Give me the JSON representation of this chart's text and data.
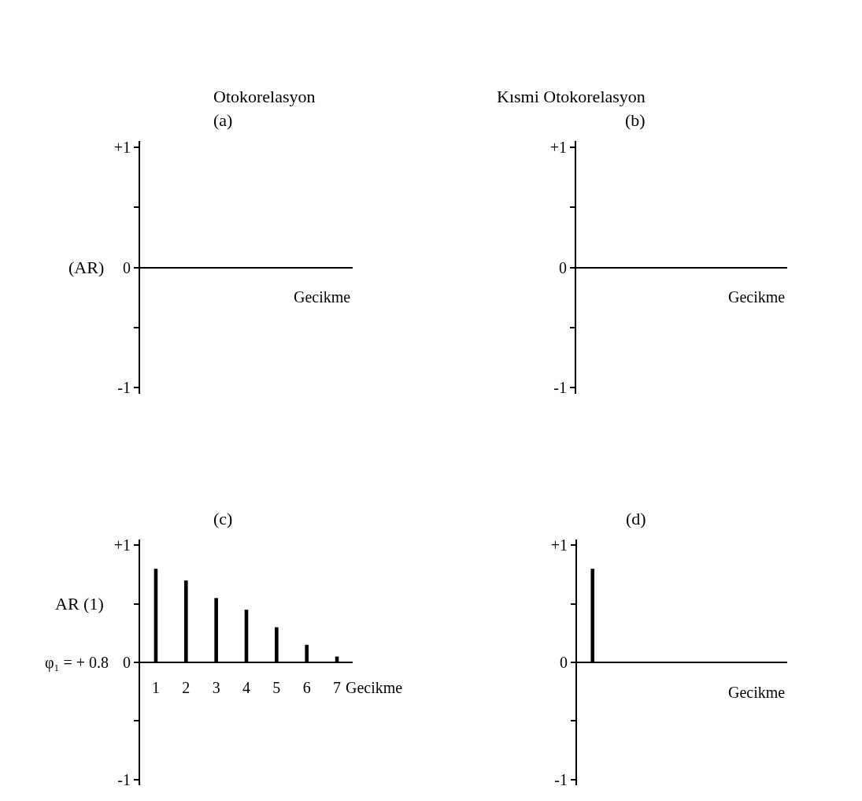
{
  "chart_data": [
    {
      "type": "bar",
      "title": "Otokorelasyon",
      "subtitle": "(a)",
      "ylabel": "(AR)",
      "xlabel": "Gecikme",
      "categories": [
        null,
        null,
        null,
        null,
        null,
        null,
        null
      ],
      "values": [
        null,
        null,
        null,
        null,
        null,
        null,
        null
      ],
      "color": "#000000",
      "ylim": [
        -1.05,
        1.05
      ],
      "yticks": [
        {
          "value": 1,
          "label": "+1"
        },
        {
          "value": 0.5,
          "label": null
        },
        {
          "value": 0,
          "label": "0"
        },
        {
          "value": -0.5,
          "label": null
        },
        {
          "value": -1,
          "label": "-1"
        }
      ],
      "tick_labels": "y"
    },
    {
      "type": "bar",
      "title": "Kısmi Otokorelasyon",
      "subtitle": "(b)",
      "xlabel": "Gecikme",
      "categories": [
        null,
        null,
        null,
        null,
        null,
        null,
        null
      ],
      "values": [
        null,
        null,
        null,
        null,
        null,
        null,
        null
      ],
      "color": "#000000",
      "ylim": [
        -1.05,
        1.05
      ],
      "yticks": [
        {
          "value": 1,
          "label": "+1"
        },
        {
          "value": 0.5,
          "label": null
        },
        {
          "value": 0,
          "label": "0"
        },
        {
          "value": -0.5,
          "label": null
        },
        {
          "value": -1,
          "label": "-1"
        }
      ],
      "tick_labels": "y"
    },
    {
      "type": "bar",
      "title": "(c)",
      "ylabel": "AR (1)",
      "xlabel": "Gecikme",
      "annotations": [
        "φ₁ = + 0.8"
      ],
      "categories": [
        "1",
        "2",
        "3",
        "4",
        "5",
        "6",
        "7"
      ],
      "values": [
        0.8,
        0.7,
        0.55,
        0.45,
        0.3,
        0.15,
        0.05
      ],
      "color": "#000000",
      "ylim": [
        -1.05,
        1.05
      ],
      "yticks": [
        {
          "value": 1,
          "label": "+1"
        },
        {
          "value": 0.5,
          "label": null
        },
        {
          "value": 0,
          "label": "0"
        },
        {
          "value": -0.5,
          "label": null
        },
        {
          "value": -1,
          "label": "-1"
        }
      ]
    },
    {
      "type": "bar",
      "title": "(d)",
      "xlabel": "Gecikme",
      "categories": [
        null,
        null,
        null,
        null,
        null,
        null,
        null
      ],
      "values": [
        0.8,
        null,
        null,
        null,
        null,
        null,
        null
      ],
      "color": "#000000",
      "ylim": [
        -1.05,
        1.05
      ],
      "yticks": [
        {
          "value": 1,
          "label": "+1"
        },
        {
          "value": 0.5,
          "label": null
        },
        {
          "value": 0,
          "label": "0"
        },
        {
          "value": -0.5,
          "label": null
        },
        {
          "value": -1,
          "label": "-1"
        }
      ],
      "tick_labels": "y"
    }
  ]
}
